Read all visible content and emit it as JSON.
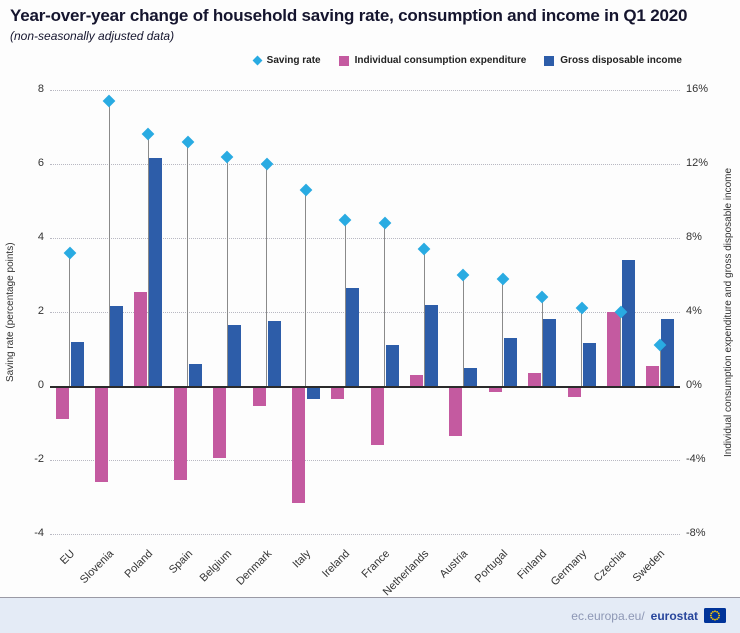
{
  "title": "Year-over-year change of household saving rate, consumption and income in Q1 2020",
  "subtitle": "(non-seasonally adjusted data)",
  "legend": [
    {
      "label": "Saving rate",
      "shape": "diamond",
      "color": "#29ABE2"
    },
    {
      "label": "Individual consumption expenditure",
      "shape": "square",
      "color": "#C45AA0"
    },
    {
      "label": "Gross disposable income",
      "shape": "square",
      "color": "#2D5DA9"
    }
  ],
  "footer": {
    "link_prefix": "ec.europa.eu/",
    "link_bold": "eurostat"
  },
  "chart_data": {
    "type": "bar",
    "categories": [
      "EU",
      "Slovenia",
      "Poland",
      "Spain",
      "Belgium",
      "Denmark",
      "Italy",
      "Ireland",
      "France",
      "Netherlands",
      "Austria",
      "Portugal",
      "Finland",
      "Germany",
      "Czechia",
      "Sweden"
    ],
    "series": [
      {
        "name": "Saving rate",
        "axis": "left",
        "style": "diamond",
        "color": "#29ABE2",
        "values": [
          3.6,
          7.7,
          6.8,
          6.6,
          6.2,
          6.0,
          5.3,
          4.5,
          4.4,
          3.7,
          3.0,
          2.9,
          2.4,
          2.1,
          2.0,
          1.1
        ]
      },
      {
        "name": "Individual consumption expenditure",
        "axis": "right",
        "style": "bar",
        "color": "#C45AA0",
        "values": [
          -1.8,
          -5.2,
          5.1,
          -5.1,
          -3.9,
          -1.1,
          -6.3,
          -0.7,
          -3.2,
          0.6,
          -2.7,
          -0.3,
          0.7,
          -0.6,
          4.0,
          1.1
        ]
      },
      {
        "name": "Gross disposable income",
        "axis": "right",
        "style": "bar",
        "color": "#2D5DA9",
        "values": [
          2.4,
          4.3,
          12.3,
          1.2,
          3.3,
          3.5,
          -0.7,
          5.3,
          2.2,
          4.4,
          1.0,
          2.6,
          3.6,
          2.3,
          6.8,
          3.6
        ]
      }
    ],
    "left_axis": {
      "label": "Saving rate (percentage points)",
      "min": -4,
      "max": 8,
      "ticks": [
        8,
        6,
        4,
        2,
        0,
        -2,
        -4
      ]
    },
    "right_axis": {
      "label": "Individual consumption expenditure and gross disposable income",
      "min": -8,
      "max": 16,
      "ticks": [
        "16%",
        "12%",
        "8%",
        "4%",
        "0%",
        "-4%",
        "-8%"
      ]
    },
    "grid": "horizontal-dotted",
    "legend_position": "top-right"
  }
}
